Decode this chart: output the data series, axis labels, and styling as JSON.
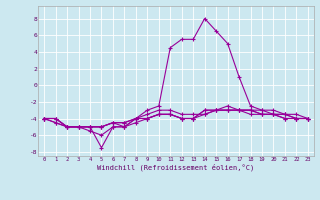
{
  "xlabel": "Windchill (Refroidissement éolien,°C)",
  "bg_color": "#cce8f0",
  "line_color": "#990099",
  "xlim": [
    -0.5,
    23.5
  ],
  "ylim": [
    -8.5,
    9.5
  ],
  "xticks": [
    0,
    1,
    2,
    3,
    4,
    5,
    6,
    7,
    8,
    9,
    10,
    11,
    12,
    13,
    14,
    15,
    16,
    17,
    18,
    19,
    20,
    21,
    22,
    23
  ],
  "yticks": [
    -8,
    -6,
    -4,
    -2,
    0,
    2,
    4,
    6,
    8
  ],
  "line1_x": [
    0,
    1,
    2,
    3,
    4,
    5,
    6,
    7,
    8,
    9,
    10,
    11,
    12,
    13,
    14,
    15,
    16,
    17,
    18,
    19,
    20,
    21,
    22,
    23
  ],
  "line1_y": [
    -4,
    -4.5,
    -5,
    -5,
    -5,
    -7.5,
    -5,
    -5,
    -4,
    -3,
    -2.5,
    4.5,
    5.5,
    5.5,
    8,
    6.5,
    5,
    1,
    -2.5,
    -3,
    -3,
    -3.5,
    -3.5,
    -4
  ],
  "line2_x": [
    0,
    1,
    2,
    3,
    4,
    5,
    6,
    7,
    8,
    9,
    10,
    11,
    12,
    13,
    14,
    15,
    16,
    17,
    18,
    19,
    20,
    21,
    22,
    23
  ],
  "line2_y": [
    -4,
    -4.5,
    -5,
    -5,
    -5,
    -5,
    -4.5,
    -4.5,
    -4,
    -3.5,
    -3,
    -3,
    -3.5,
    -3.5,
    -3.5,
    -3,
    -3,
    -3,
    -3,
    -3.5,
    -3.5,
    -3.5,
    -4,
    -4
  ],
  "line3_x": [
    0,
    1,
    2,
    3,
    4,
    5,
    6,
    7,
    8,
    9,
    10,
    11,
    12,
    13,
    14,
    15,
    16,
    17,
    18,
    19,
    20,
    21,
    22,
    23
  ],
  "line3_y": [
    -4,
    -4,
    -5,
    -5,
    -5,
    -5,
    -4.5,
    -5,
    -4,
    -4,
    -3.5,
    -3.5,
    -4,
    -4,
    -3.5,
    -3,
    -3,
    -3,
    -3.5,
    -3.5,
    -3.5,
    -4,
    -4,
    -4
  ],
  "line4_x": [
    0,
    1,
    2,
    3,
    4,
    5,
    6,
    7,
    8,
    9,
    10,
    11,
    12,
    13,
    14,
    15,
    16,
    17,
    18,
    19,
    20,
    21,
    22,
    23
  ],
  "line4_y": [
    -4,
    -4,
    -5,
    -5,
    -5,
    -5,
    -4.5,
    -4.5,
    -4,
    -4,
    -3.5,
    -3.5,
    -4,
    -4,
    -3,
    -3,
    -3,
    -3,
    -3,
    -3,
    -3.5,
    -3.5,
    -4,
    -4
  ],
  "line5_x": [
    0,
    1,
    2,
    3,
    4,
    5,
    6,
    7,
    8,
    9,
    10,
    11,
    12,
    13,
    14,
    15,
    16,
    17,
    18,
    19,
    20,
    21,
    22,
    23
  ],
  "line5_y": [
    -4,
    -4,
    -5,
    -5,
    -5.5,
    -6,
    -5,
    -5,
    -4.5,
    -4,
    -3.5,
    -3.5,
    -4,
    -4,
    -3,
    -3,
    -2.5,
    -3,
    -3,
    -3.5,
    -3.5,
    -4,
    -4,
    -4
  ]
}
